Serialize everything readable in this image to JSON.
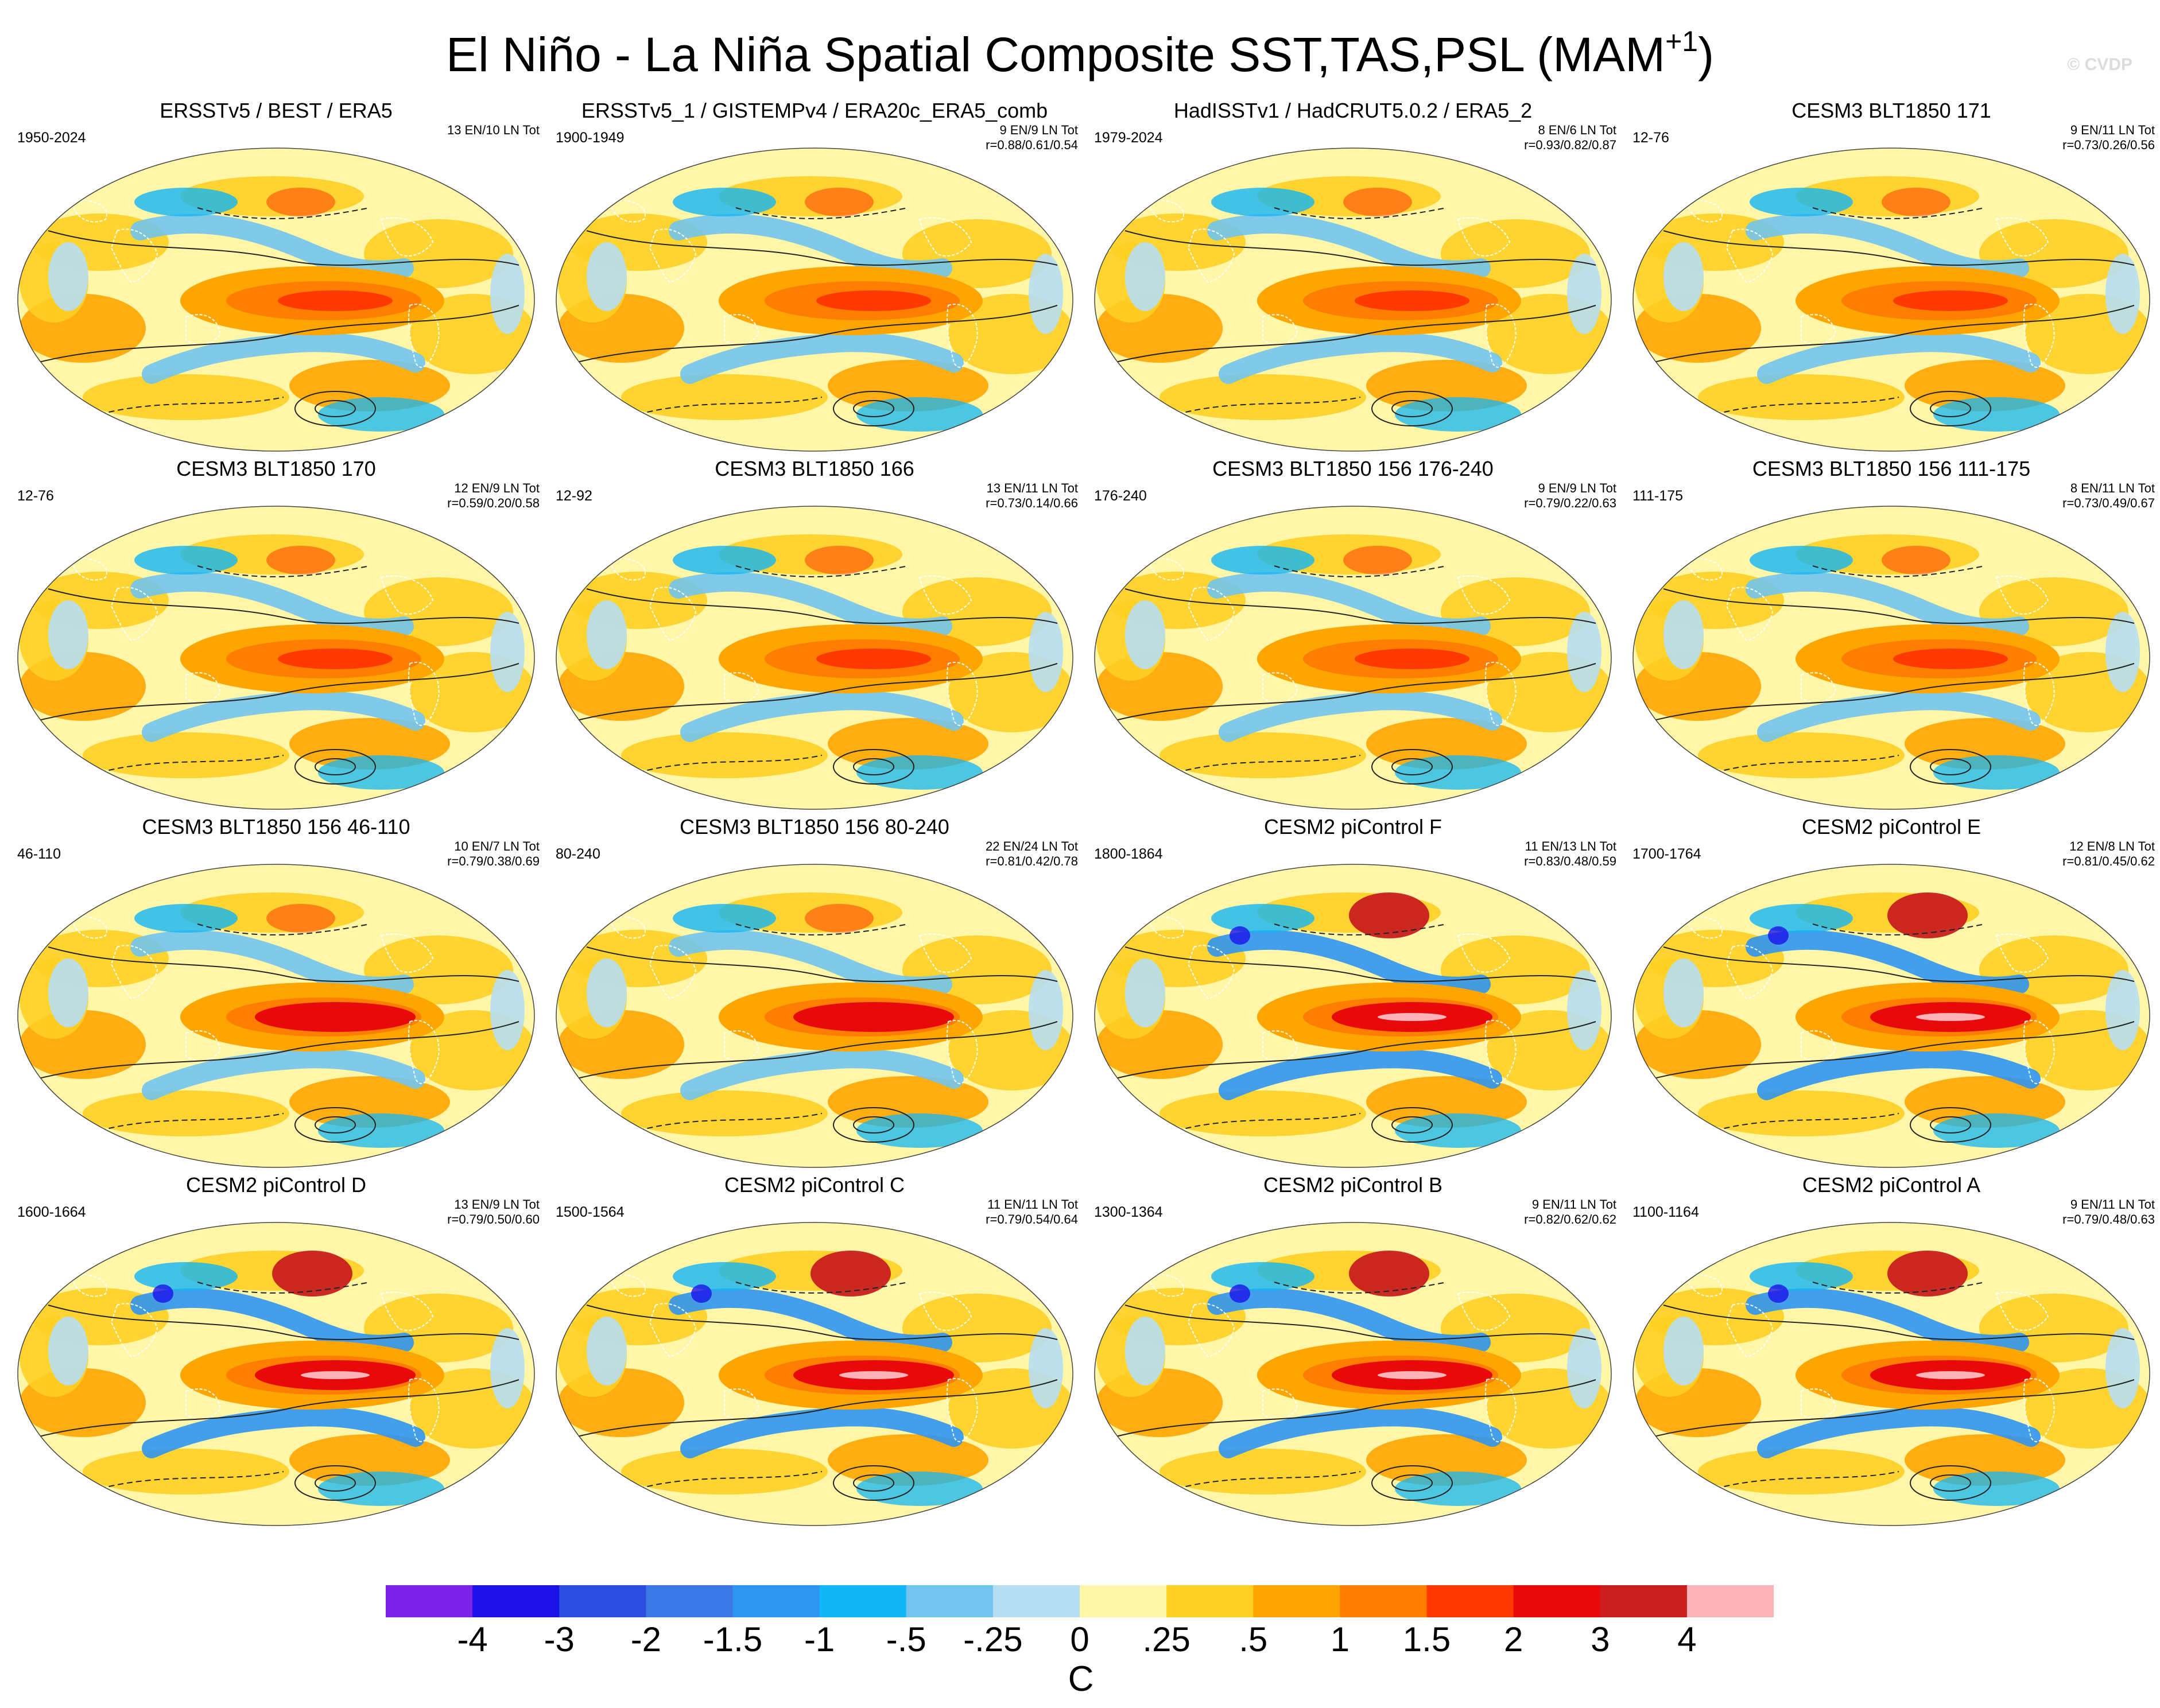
{
  "figure": {
    "title": "El Niño - La Niña Spatial Composite SST,TAS,PSL (MAM",
    "title_superscript": "+1",
    "title_close": ")",
    "watermark": "© CVDP",
    "units": "C"
  },
  "colors": {
    "levels": [
      "-4",
      "-3",
      "-2",
      "-1.5",
      "-1",
      "-.5",
      "-.25",
      "0",
      ".25",
      ".5",
      "1",
      "1.5",
      "2",
      "3",
      "4"
    ],
    "swatches": [
      "#7b22e6",
      "#1c12e8",
      "#2b4ee0",
      "#3a78e6",
      "#2f95f2",
      "#12b5f5",
      "#72c4ee",
      "#b6def2",
      "#fff6a8",
      "#ffd024",
      "#ffa500",
      "#ff7d00",
      "#ff3a00",
      "#e80a0a",
      "#c81e1e",
      "#ffb3b8"
    ]
  },
  "panels": [
    {
      "title": "ERSSTv5 / BEST / ERA5",
      "years": "1950-2024",
      "counts": "13 EN/10 LN Tot",
      "corr": ""
    },
    {
      "title": "ERSSTv5_1 / GISTEMPv4 / ERA20c_ERA5_comb",
      "years": "1900-1949",
      "counts": "9 EN/9 LN Tot",
      "corr": "r=0.88/0.61/0.54"
    },
    {
      "title": "HadISSTv1 / HadCRUT5.0.2 / ERA5_2",
      "years": "1979-2024",
      "counts": "8 EN/6 LN Tot",
      "corr": "r=0.93/0.82/0.87"
    },
    {
      "title": "CESM3 BLT1850 171",
      "years": "12-76",
      "counts": "9 EN/11 LN Tot",
      "corr": "r=0.73/0.26/0.56"
    },
    {
      "title": "CESM3 BLT1850 170",
      "years": "12-76",
      "counts": "12 EN/9 LN Tot",
      "corr": "r=0.59/0.20/0.58"
    },
    {
      "title": "CESM3 BLT1850 166",
      "years": "12-92",
      "counts": "13 EN/11 LN Tot",
      "corr": "r=0.73/0.14/0.66"
    },
    {
      "title": "CESM3 BLT1850 156 176-240",
      "years": "176-240",
      "counts": "9 EN/9 LN Tot",
      "corr": "r=0.79/0.22/0.63"
    },
    {
      "title": "CESM3 BLT1850 156 111-175",
      "years": "111-175",
      "counts": "8 EN/11 LN Tot",
      "corr": "r=0.73/0.49/0.67"
    },
    {
      "title": "CESM3 BLT1850 156 46-110",
      "years": "46-110",
      "counts": "10 EN/7 LN Tot",
      "corr": "r=0.79/0.38/0.69"
    },
    {
      "title": "CESM3 BLT1850 156 80-240",
      "years": "80-240",
      "counts": "22 EN/24 LN Tot",
      "corr": "r=0.81/0.42/0.78"
    },
    {
      "title": "CESM2 piControl F",
      "years": "1800-1864",
      "counts": "11 EN/13 LN Tot",
      "corr": "r=0.83/0.48/0.59"
    },
    {
      "title": "CESM2 piControl E",
      "years": "1700-1764",
      "counts": "12 EN/8 LN Tot",
      "corr": "r=0.81/0.45/0.62"
    },
    {
      "title": "CESM2 piControl D",
      "years": "1600-1664",
      "counts": "13 EN/9 LN Tot",
      "corr": "r=0.79/0.50/0.60"
    },
    {
      "title": "CESM2 piControl C",
      "years": "1500-1564",
      "counts": "11 EN/11 LN Tot",
      "corr": "r=0.79/0.54/0.64"
    },
    {
      "title": "CESM2 piControl B",
      "years": "1300-1364",
      "counts": "9 EN/11 LN Tot",
      "corr": "r=0.82/0.62/0.62"
    },
    {
      "title": "CESM2 piControl A",
      "years": "1100-1164",
      "counts": "9 EN/11 LN Tot",
      "corr": "r=0.79/0.48/0.63"
    }
  ]
}
